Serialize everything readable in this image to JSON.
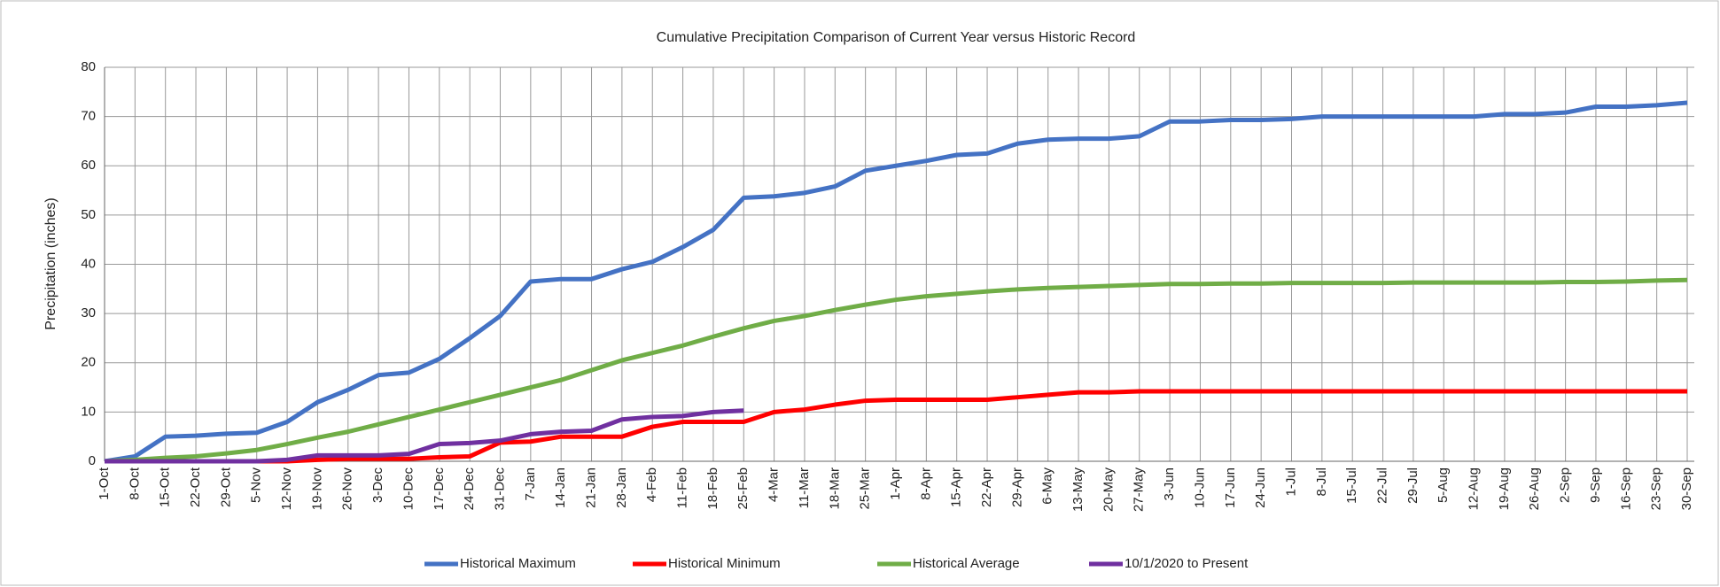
{
  "chart_data": {
    "type": "line",
    "title": "Cumulative Precipitation Comparison of Current Year versus Historic Record",
    "y_label": "Precipitation (inches)",
    "categories": [
      "1-Oct",
      "8-Oct",
      "15-Oct",
      "22-Oct",
      "29-Oct",
      "5-Nov",
      "12-Nov",
      "19-Nov",
      "26-Nov",
      "3-Dec",
      "10-Dec",
      "17-Dec",
      "24-Dec",
      "31-Dec",
      "7-Jan",
      "14-Jan",
      "21-Jan",
      "28-Jan",
      "4-Feb",
      "11-Feb",
      "18-Feb",
      "25-Feb",
      "4-Mar",
      "11-Mar",
      "18-Mar",
      "25-Mar",
      "1-Apr",
      "8-Apr",
      "15-Apr",
      "22-Apr",
      "29-Apr",
      "6-May",
      "13-May",
      "20-May",
      "27-May",
      "3-Jun",
      "10-Jun",
      "17-Jun",
      "24-Jun",
      "1-Jul",
      "8-Jul",
      "15-Jul",
      "22-Jul",
      "29-Jul",
      "5-Aug",
      "12-Aug",
      "19-Aug",
      "26-Aug",
      "2-Sep",
      "9-Sep",
      "16-Sep",
      "23-Sep",
      "30-Sep"
    ],
    "series": [
      {
        "name": "Historical Maximum",
        "color": "#4472c4",
        "values": [
          0,
          1,
          5,
          5.2,
          5.6,
          5.8,
          8,
          12,
          14.5,
          17.5,
          18,
          20.8,
          25,
          29.5,
          36.5,
          37,
          37,
          39,
          40.5,
          43.5,
          47,
          53.5,
          53.8,
          54.5,
          55.8,
          59,
          60,
          61,
          62.2,
          62.5,
          64.5,
          65.3,
          65.5,
          65.5,
          66,
          69,
          69,
          69.3,
          69.3,
          69.5,
          70,
          70,
          70,
          70,
          70,
          70,
          70.5,
          70.5,
          70.8,
          72,
          72,
          72.3,
          72.8
        ]
      },
      {
        "name": "Historical Minimum",
        "color": "#ff0000",
        "values": [
          0,
          0,
          0,
          0,
          0,
          0,
          0,
          0.3,
          0.5,
          0.5,
          0.5,
          0.8,
          1,
          3.8,
          4,
          5,
          5,
          5,
          7,
          8,
          8,
          8,
          10,
          10.5,
          11.5,
          12.3,
          12.5,
          12.5,
          12.5,
          12.5,
          13,
          13.5,
          14,
          14,
          14.2,
          14.2,
          14.2,
          14.2,
          14.2,
          14.2,
          14.2,
          14.2,
          14.2,
          14.2,
          14.2,
          14.2,
          14.2,
          14.2,
          14.2,
          14.2,
          14.2,
          14.2,
          14.2
        ]
      },
      {
        "name": "Historical Average",
        "color": "#70ad47",
        "values": [
          0,
          0.3,
          0.7,
          1,
          1.6,
          2.3,
          3.5,
          4.8,
          6,
          7.5,
          9,
          10.5,
          12,
          13.5,
          15,
          16.5,
          18.5,
          20.5,
          22,
          23.5,
          25.3,
          27,
          28.5,
          29.5,
          30.7,
          31.8,
          32.8,
          33.5,
          34,
          34.5,
          34.9,
          35.2,
          35.4,
          35.6,
          35.8,
          36,
          36,
          36.1,
          36.1,
          36.2,
          36.2,
          36.2,
          36.2,
          36.3,
          36.3,
          36.3,
          36.3,
          36.3,
          36.4,
          36.4,
          36.5,
          36.7,
          36.8
        ]
      },
      {
        "name": "10/1/2020 to Present",
        "color": "#7030a0",
        "values": [
          0,
          0,
          0,
          0,
          0,
          0,
          0.3,
          1.2,
          1.2,
          1.2,
          1.5,
          3.5,
          3.7,
          4.2,
          5.5,
          6,
          6.2,
          8.5,
          9,
          9.2,
          10,
          10.3,
          null,
          null,
          null,
          null,
          null,
          null,
          null,
          null,
          null,
          null,
          null,
          null,
          null,
          null,
          null,
          null,
          null,
          null,
          null,
          null,
          null,
          null,
          null,
          null,
          null,
          null,
          null,
          null,
          null,
          null,
          null
        ]
      }
    ],
    "ylim": [
      0,
      80
    ],
    "yticks": [
      0,
      10,
      20,
      30,
      40,
      50,
      60,
      70,
      80
    ],
    "grid": true,
    "legend": "bottom"
  }
}
